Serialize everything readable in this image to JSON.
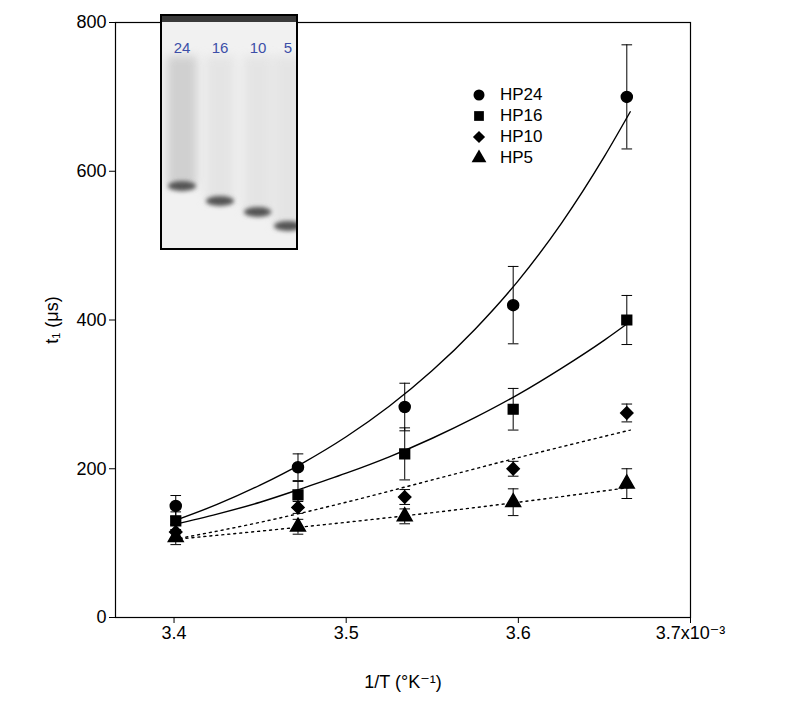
{
  "chart_data": {
    "type": "scatter",
    "x_label": "1/T (°K⁻¹)",
    "y_label": "t₁ (μs)",
    "xlim": [
      0.003366,
      0.0037
    ],
    "xticks": [
      {
        "value": 0.0034,
        "label": "3.4"
      },
      {
        "value": 0.0035,
        "label": "3.5"
      },
      {
        "value": 0.0036,
        "label": "3.6"
      },
      {
        "value": 0.0037,
        "label": "3.7x10⁻³"
      }
    ],
    "ylim": [
      0,
      800
    ],
    "yticks": [
      0,
      200,
      400,
      600,
      800
    ],
    "grid": false,
    "legend": "upper right",
    "x": [
      0.003401,
      0.003472,
      0.003534,
      0.003597,
      0.003663
    ],
    "series": [
      {
        "name": "HP24",
        "color": "#000000",
        "marker": "circle",
        "values": [
          150,
          202,
          283,
          420,
          700
        ],
        "errors": [
          14,
          18,
          32,
          52,
          70
        ],
        "line_style": "solid",
        "fit_x": [
          0.0034,
          0.003425,
          0.00345,
          0.003475,
          0.0035,
          0.003525,
          0.00355,
          0.003575,
          0.0036,
          0.003625,
          0.00365,
          0.003665
        ],
        "fit_values": [
          130,
          152,
          178,
          208,
          243,
          284,
          332,
          388,
          453,
          530,
          620,
          680
        ]
      },
      {
        "name": "HP16",
        "color": "#000000",
        "marker": "square",
        "values": [
          130,
          165,
          220,
          280,
          400
        ],
        "errors": [
          12,
          18,
          35,
          28,
          33
        ],
        "line_style": "solid",
        "fit_x": [
          0.0034,
          0.003425,
          0.00345,
          0.003475,
          0.0035,
          0.003525,
          0.00355,
          0.003575,
          0.0036,
          0.003625,
          0.00365,
          0.003665
        ],
        "fit_values": [
          125,
          139,
          155,
          174,
          194,
          216,
          241,
          269,
          300,
          335,
          373,
          398
        ]
      },
      {
        "name": "HP10",
        "color": "#000000",
        "marker": "diamond",
        "values": [
          115,
          148,
          162,
          200,
          275
        ],
        "errors": [
          10,
          8,
          10,
          10,
          12
        ],
        "line_style": "dotted",
        "fit_x": [
          0.0034,
          0.00345,
          0.0035,
          0.00355,
          0.0036,
          0.003665
        ],
        "fit_values": [
          105,
          128,
          155,
          185,
          215,
          252
        ]
      },
      {
        "name": "HP5",
        "color": "#000000",
        "marker": "triangle",
        "values": [
          108,
          122,
          136,
          155,
          180
        ],
        "errors": [
          10,
          10,
          10,
          18,
          20
        ],
        "line_style": "dotted",
        "fit_x": [
          0.0034,
          0.0035,
          0.0036,
          0.003665
        ],
        "fit_values": [
          105,
          128,
          155,
          175
        ]
      }
    ],
    "inset": {
      "type": "gel",
      "lane_labels": [
        "24",
        "16",
        "10",
        "5"
      ]
    }
  }
}
